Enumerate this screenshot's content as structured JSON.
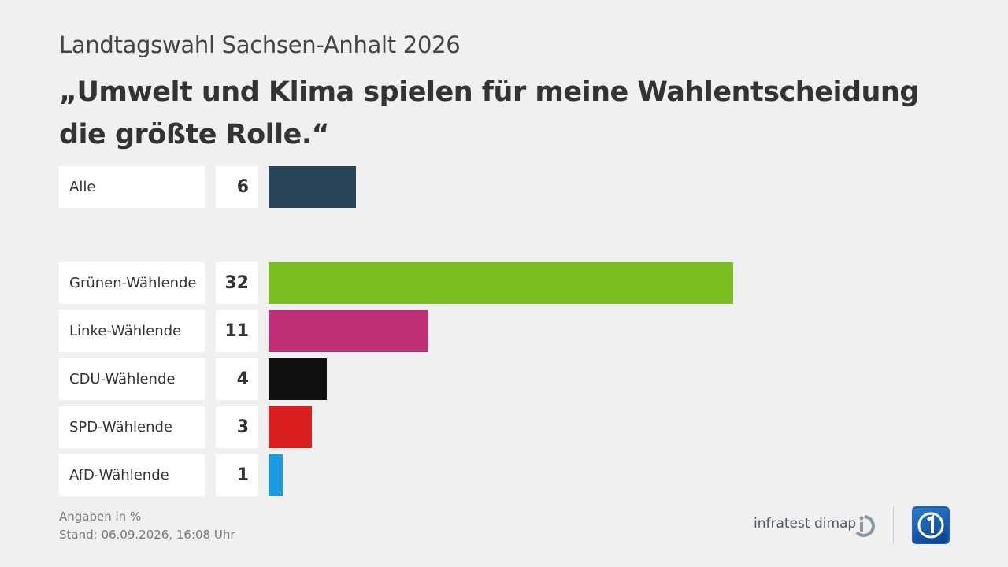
{
  "chart_data": {
    "type": "bar",
    "orientation": "horizontal",
    "supertitle": "Landtagswahl Sachsen-Anhalt 2026",
    "title": "„Umwelt und Klima spielen für meine Wahlentscheidung die größte Rolle.“",
    "xlim": [
      0,
      32
    ],
    "categories": [
      "Alle",
      "Grünen-Wählende",
      "Linke-Wählende",
      "CDU-Wählende",
      "SPD-Wählende",
      "AfD-Wählende"
    ],
    "values": [
      6,
      32,
      11,
      4,
      3,
      1
    ],
    "value_labels": [
      "6",
      "32",
      "11",
      "4",
      "3",
      "1"
    ],
    "colors": [
      "#2b4558",
      "#78be20",
      "#be3075",
      "#111111",
      "#d9201f",
      "#1d9be0"
    ]
  },
  "footer": {
    "unit_note": "Angaben in %",
    "date_note": "Stand:  06.09.2026, 16:08 Uhr",
    "brand": "infratest dimap"
  }
}
